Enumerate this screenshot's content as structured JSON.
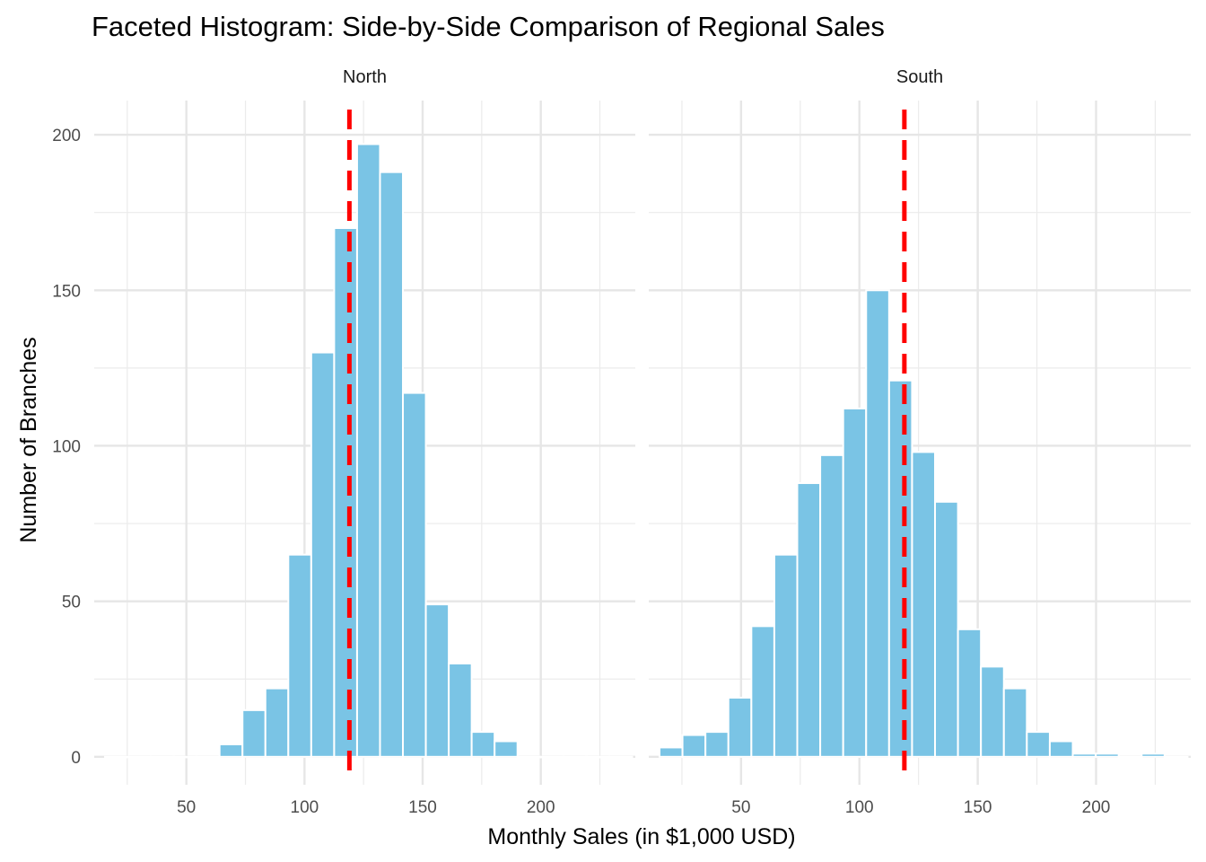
{
  "chart_data": {
    "type": "bar",
    "title": "Faceted Histogram: Side-by-Side Comparison of Regional Sales",
    "xlabel": "Monthly Sales (in $1,000 USD)",
    "ylabel": "Number of Branches",
    "xlim": [
      11,
      240
    ],
    "ylim": [
      -9,
      211
    ],
    "x_ticks": [
      50,
      100,
      150,
      200
    ],
    "y_ticks": [
      0,
      50,
      100,
      150,
      200
    ],
    "grid": true,
    "bin_width": 9.7,
    "bar_color": "#7AC4E5",
    "reference_line": {
      "x": 119,
      "color": "#FF0000",
      "style": "dashed"
    },
    "facets": [
      {
        "name": "North",
        "bins": [
          {
            "x": 20.4,
            "count": 0
          },
          {
            "x": 30.1,
            "count": 0
          },
          {
            "x": 39.8,
            "count": 0
          },
          {
            "x": 49.5,
            "count": 0
          },
          {
            "x": 59.2,
            "count": 0
          },
          {
            "x": 68.9,
            "count": 4
          },
          {
            "x": 78.6,
            "count": 15
          },
          {
            "x": 88.3,
            "count": 22
          },
          {
            "x": 98.0,
            "count": 65
          },
          {
            "x": 107.7,
            "count": 130
          },
          {
            "x": 117.4,
            "count": 170
          },
          {
            "x": 127.1,
            "count": 197
          },
          {
            "x": 136.8,
            "count": 188
          },
          {
            "x": 146.5,
            "count": 117
          },
          {
            "x": 156.2,
            "count": 49
          },
          {
            "x": 165.9,
            "count": 30
          },
          {
            "x": 175.6,
            "count": 8
          },
          {
            "x": 185.3,
            "count": 5
          },
          {
            "x": 195.0,
            "count": 0
          },
          {
            "x": 204.7,
            "count": 0
          },
          {
            "x": 214.4,
            "count": 0
          },
          {
            "x": 224.1,
            "count": 0
          },
          {
            "x": 233.8,
            "count": 0
          }
        ]
      },
      {
        "name": "South",
        "bins": [
          {
            "x": 20.4,
            "count": 3
          },
          {
            "x": 30.1,
            "count": 7
          },
          {
            "x": 39.8,
            "count": 8
          },
          {
            "x": 49.5,
            "count": 19
          },
          {
            "x": 59.2,
            "count": 42
          },
          {
            "x": 68.9,
            "count": 65
          },
          {
            "x": 78.6,
            "count": 88
          },
          {
            "x": 88.3,
            "count": 97
          },
          {
            "x": 98.0,
            "count": 112
          },
          {
            "x": 107.7,
            "count": 150
          },
          {
            "x": 117.4,
            "count": 121
          },
          {
            "x": 127.1,
            "count": 98
          },
          {
            "x": 136.8,
            "count": 82
          },
          {
            "x": 146.5,
            "count": 41
          },
          {
            "x": 156.2,
            "count": 29
          },
          {
            "x": 165.9,
            "count": 22
          },
          {
            "x": 175.6,
            "count": 8
          },
          {
            "x": 185.3,
            "count": 5
          },
          {
            "x": 195.0,
            "count": 1
          },
          {
            "x": 204.7,
            "count": 1
          },
          {
            "x": 214.4,
            "count": 0
          },
          {
            "x": 224.1,
            "count": 1
          },
          {
            "x": 233.8,
            "count": 0
          }
        ]
      }
    ]
  }
}
